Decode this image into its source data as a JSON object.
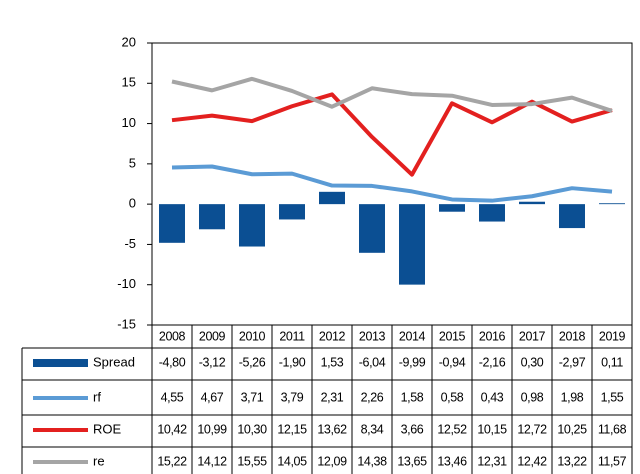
{
  "chart_data": {
    "type": "combo",
    "categories": [
      "2008",
      "2009",
      "2010",
      "2011",
      "2012",
      "2013",
      "2014",
      "2015",
      "2016",
      "2017",
      "2018",
      "2019"
    ],
    "ylim": [
      -15,
      20
    ],
    "yticks": [
      -15,
      -10,
      -5,
      0,
      5,
      10,
      15,
      20
    ],
    "grid": false,
    "data_table": true,
    "series": [
      {
        "name": "Spread",
        "type": "bar",
        "color": "#0b4f93",
        "values": [
          -4.8,
          -3.12,
          -5.26,
          -1.9,
          1.53,
          -6.04,
          -9.99,
          -0.94,
          -2.16,
          0.3,
          -2.97,
          0.11
        ],
        "value_labels": [
          "-4,80",
          "-3,12",
          "-5,26",
          "-1,90",
          "1,53",
          "-6,04",
          "-9,99",
          "-0,94",
          "-2,16",
          "0,30",
          "-2,97",
          "0,11"
        ]
      },
      {
        "name": "rf",
        "type": "line",
        "color": "#5b9bd5",
        "values": [
          4.55,
          4.67,
          3.71,
          3.79,
          2.31,
          2.26,
          1.58,
          0.58,
          0.43,
          0.98,
          1.98,
          1.55
        ],
        "value_labels": [
          "4,55",
          "4,67",
          "3,71",
          "3,79",
          "2,31",
          "2,26",
          "1,58",
          "0,58",
          "0,43",
          "0,98",
          "1,98",
          "1,55"
        ]
      },
      {
        "name": "ROE",
        "type": "line",
        "color": "#e3201f",
        "values": [
          10.42,
          10.99,
          10.3,
          12.15,
          13.62,
          8.34,
          3.66,
          12.52,
          10.15,
          12.72,
          10.25,
          11.68
        ],
        "value_labels": [
          "10,42",
          "10,99",
          "10,30",
          "12,15",
          "13,62",
          "8,34",
          "3,66",
          "12,52",
          "10,15",
          "12,72",
          "10,25",
          "11,68"
        ]
      },
      {
        "name": "re",
        "type": "line",
        "color": "#a5a5a5",
        "values": [
          15.22,
          14.12,
          15.55,
          14.05,
          12.09,
          14.38,
          13.65,
          13.46,
          12.31,
          12.42,
          13.22,
          11.57
        ],
        "value_labels": [
          "15,22",
          "14,12",
          "15,55",
          "14,05",
          "12,09",
          "14,38",
          "13,65",
          "13,46",
          "12,31",
          "12,42",
          "13,22",
          "11,57"
        ]
      }
    ]
  }
}
